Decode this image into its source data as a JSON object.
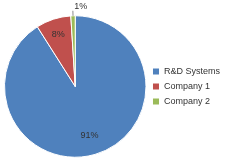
{
  "chart_data": {
    "type": "pie",
    "categories": [
      "R&D Systems",
      "Company 1",
      "Company 2"
    ],
    "values": [
      91,
      8,
      1
    ],
    "value_labels": [
      "91%",
      "8%",
      "1%"
    ],
    "colors": [
      "#4f81bd",
      "#c0504d",
      "#9bbb59"
    ],
    "legend": "right",
    "data_labels": true
  }
}
